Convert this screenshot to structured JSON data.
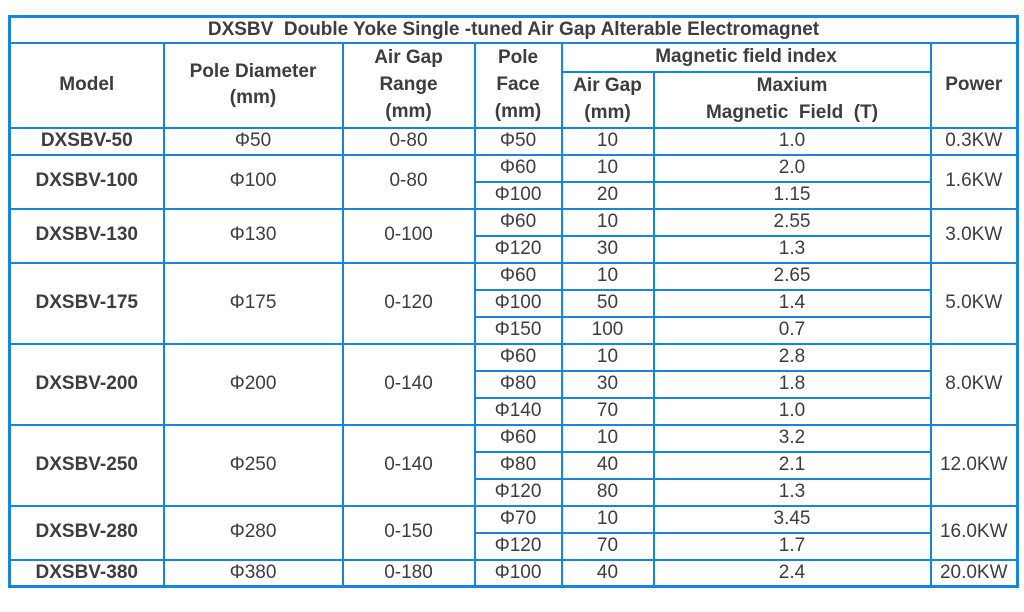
{
  "title": "DXSBV  Double Yoke Single -tuned Air Gap Alterable Electromagnet",
  "colors": {
    "border": "#1786d9",
    "text": "#3d3d40",
    "background": "#ffffff"
  },
  "header": {
    "model": "Model",
    "pole_diameter": "Pole Diameter\n(mm)",
    "air_gap_range": "Air Gap\nRange\n(mm)",
    "pole_face": "Pole\nFace\n(mm)",
    "magnetic_field_index": "Magnetic field index",
    "air_gap": "Air Gap\n(mm)",
    "max_field": "Maxium\nMagnetic  Field  (T)",
    "power": "Power"
  },
  "rows": [
    {
      "model": "DXSBV-50",
      "pole_diameter": "Φ50",
      "air_gap_range": "0-80",
      "power": "0.3KW",
      "subrows": [
        {
          "pole_face": "Φ50",
          "air_gap": "10",
          "max_field": "1.0"
        }
      ]
    },
    {
      "model": "DXSBV-100",
      "pole_diameter": "Φ100",
      "air_gap_range": "0-80",
      "power": "1.6KW",
      "subrows": [
        {
          "pole_face": "Φ60",
          "air_gap": "10",
          "max_field": "2.0"
        },
        {
          "pole_face": "Φ100",
          "air_gap": "20",
          "max_field": "1.15"
        }
      ]
    },
    {
      "model": "DXSBV-130",
      "pole_diameter": "Φ130",
      "air_gap_range": "0-100",
      "power": "3.0KW",
      "subrows": [
        {
          "pole_face": "Φ60",
          "air_gap": "10",
          "max_field": "2.55"
        },
        {
          "pole_face": "Φ120",
          "air_gap": "30",
          "max_field": "1.3"
        }
      ]
    },
    {
      "model": "DXSBV-175",
      "pole_diameter": "Φ175",
      "air_gap_range": "0-120",
      "power": "5.0KW",
      "subrows": [
        {
          "pole_face": "Φ60",
          "air_gap": "10",
          "max_field": "2.65"
        },
        {
          "pole_face": "Φ100",
          "air_gap": "50",
          "max_field": "1.4"
        },
        {
          "pole_face": "Φ150",
          "air_gap": "100",
          "max_field": "0.7"
        }
      ]
    },
    {
      "model": "DXSBV-200",
      "pole_diameter": "Φ200",
      "air_gap_range": "0-140",
      "power": "8.0KW",
      "subrows": [
        {
          "pole_face": "Φ60",
          "air_gap": "10",
          "max_field": "2.8"
        },
        {
          "pole_face": "Φ80",
          "air_gap": "30",
          "max_field": "1.8"
        },
        {
          "pole_face": "Φ140",
          "air_gap": "70",
          "max_field": "1.0"
        }
      ]
    },
    {
      "model": "DXSBV-250",
      "pole_diameter": "Φ250",
      "air_gap_range": "0-140",
      "power": "12.0KW",
      "subrows": [
        {
          "pole_face": "Φ60",
          "air_gap": "10",
          "max_field": "3.2"
        },
        {
          "pole_face": "Φ80",
          "air_gap": "40",
          "max_field": "2.1"
        },
        {
          "pole_face": "Φ120",
          "air_gap": "80",
          "max_field": "1.3"
        }
      ]
    },
    {
      "model": "DXSBV-280",
      "pole_diameter": "Φ280",
      "air_gap_range": "0-150",
      "power": "16.0KW",
      "subrows": [
        {
          "pole_face": "Φ70",
          "air_gap": "10",
          "max_field": "3.45"
        },
        {
          "pole_face": "Φ120",
          "air_gap": "70",
          "max_field": "1.7"
        }
      ]
    },
    {
      "model": "DXSBV-380",
      "pole_diameter": "Φ380",
      "air_gap_range": "0-180",
      "power": "20.0KW",
      "subrows": [
        {
          "pole_face": "Φ100",
          "air_gap": "40",
          "max_field": "2.4"
        }
      ]
    }
  ]
}
